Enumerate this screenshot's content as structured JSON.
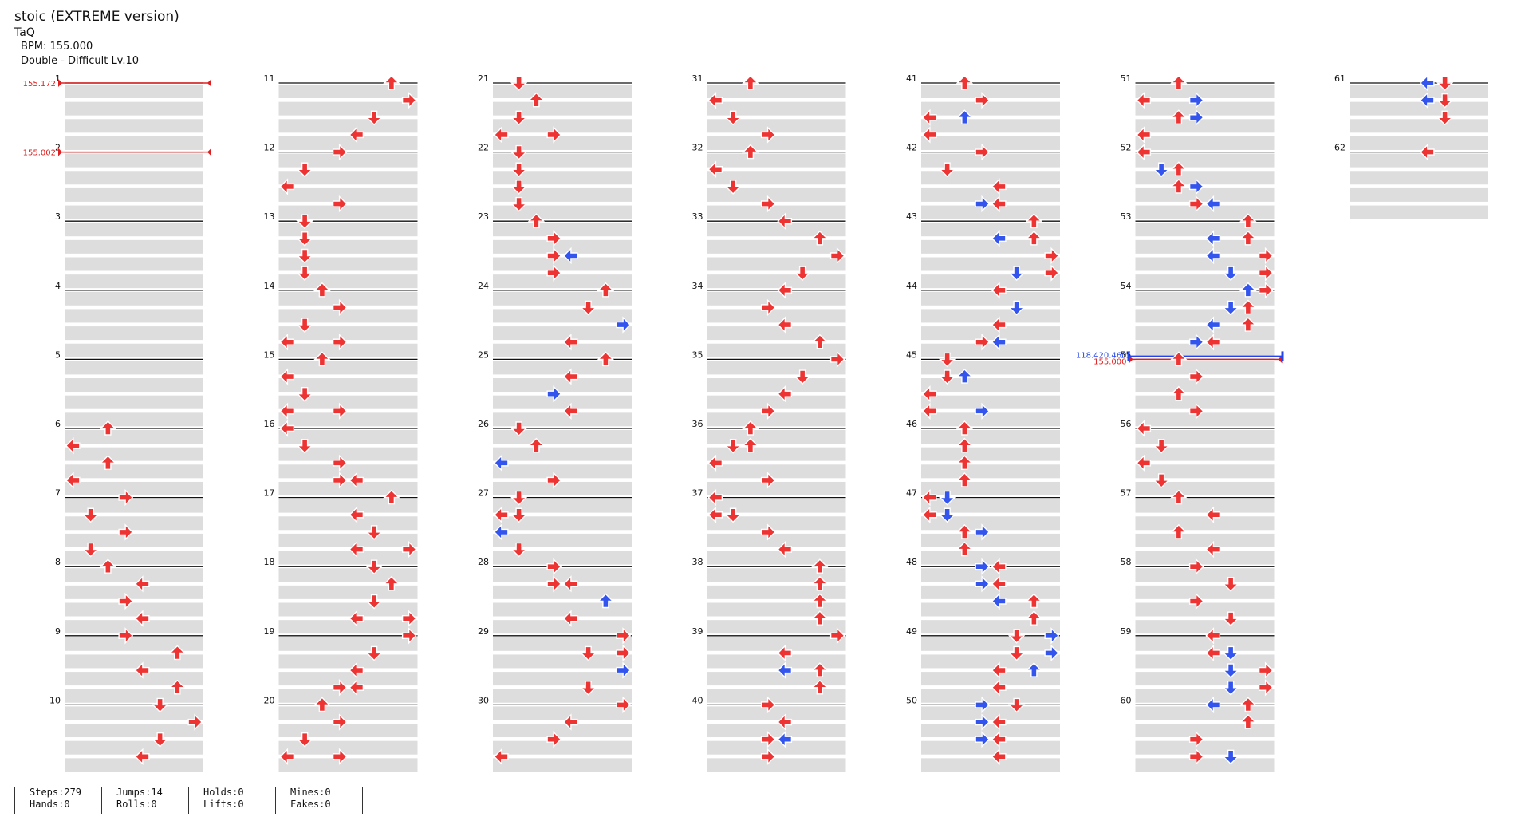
{
  "header": {
    "title": "stoic (EXTREME version)",
    "artist": "TaQ",
    "bpm": "BPM: 155.000",
    "difficulty": "Double - Difficult Lv.10"
  },
  "chart": {
    "measures_per_column": 10,
    "total_measures": 62,
    "lanes": 8,
    "lane_order": [
      "left",
      "down",
      "up",
      "right",
      "left",
      "down",
      "up",
      "right"
    ],
    "colors": {
      "quarter": "#ee3333",
      "eighth": "#3355ee",
      "bar_line": "#111111",
      "band": "#dddddd"
    },
    "bpm_changes": [
      {
        "measure": 1,
        "label": "155.172"
      },
      {
        "measure": 2,
        "label": "155.002"
      },
      {
        "measure": 55,
        "label": "155.000"
      }
    ],
    "other_changes": [
      {
        "measure": 55,
        "label": "118.420.460"
      }
    ],
    "notes": {
      "6": [
        [
          0,
          2
        ],
        [
          1,
          0
        ],
        [
          2,
          2
        ],
        [
          3,
          0
        ]
      ],
      "7": [
        [
          0,
          3
        ],
        [
          1,
          1
        ],
        [
          2,
          3
        ],
        [
          3,
          1
        ]
      ],
      "8": [
        [
          0,
          2
        ],
        [
          1,
          4
        ],
        [
          2,
          3
        ],
        [
          3,
          4
        ]
      ],
      "9": [
        [
          0,
          3
        ],
        [
          1,
          6
        ],
        [
          2,
          4
        ],
        [
          3,
          6
        ]
      ],
      "10": [
        [
          0,
          5
        ],
        [
          1,
          7
        ],
        [
          2,
          5
        ],
        [
          3,
          4
        ]
      ],
      "11": [
        [
          0,
          6
        ],
        [
          1,
          7
        ],
        [
          2,
          5
        ],
        [
          3,
          4
        ]
      ],
      "12": [
        [
          0,
          3
        ],
        [
          1,
          1
        ],
        [
          2,
          0
        ],
        [
          3,
          3
        ]
      ],
      "13": [
        [
          0,
          1
        ],
        [
          1,
          1
        ],
        [
          2,
          1
        ],
        [
          3,
          1
        ]
      ],
      "14": [
        [
          0,
          2
        ],
        [
          1,
          3
        ],
        [
          2,
          1
        ],
        [
          3,
          0,
          3
        ]
      ],
      "15": [
        [
          0,
          2
        ],
        [
          1,
          0
        ],
        [
          2,
          1
        ],
        [
          3,
          0,
          3
        ]
      ],
      "16": [
        [
          0,
          0
        ],
        [
          1,
          1
        ],
        [
          2,
          3
        ],
        [
          3,
          3,
          4
        ]
      ],
      "17": [
        [
          0,
          6
        ],
        [
          1,
          4
        ],
        [
          2,
          5
        ],
        [
          3,
          4,
          7
        ]
      ],
      "18": [
        [
          0,
          5
        ],
        [
          1,
          6
        ],
        [
          2,
          5
        ],
        [
          3,
          4,
          7
        ]
      ],
      "19": [
        [
          0,
          7
        ],
        [
          1,
          5
        ],
        [
          2,
          4
        ],
        [
          3,
          3,
          4
        ]
      ],
      "20": [
        [
          0,
          2
        ],
        [
          1,
          3
        ],
        [
          2,
          1
        ],
        [
          3,
          0,
          3
        ]
      ],
      "21": [
        [
          0,
          1
        ],
        [
          1,
          2
        ],
        [
          2,
          1
        ],
        [
          3,
          0,
          3
        ]
      ],
      "22": [
        [
          0,
          1
        ],
        [
          1,
          1
        ],
        [
          2,
          1
        ],
        [
          3,
          1
        ]
      ],
      "23": [
        [
          0,
          2
        ],
        [
          1,
          3
        ],
        [
          2,
          3,
          "b4"
        ],
        [
          3,
          3
        ]
      ],
      "24": [
        [
          0,
          6
        ],
        [
          1,
          5
        ],
        [
          2,
          "b7"
        ],
        [
          3,
          4
        ]
      ],
      "25": [
        [
          0,
          6
        ],
        [
          1,
          4
        ],
        [
          2,
          "b3"
        ],
        [
          3,
          4
        ]
      ],
      "26": [
        [
          0,
          1
        ],
        [
          1,
          2
        ],
        [
          2,
          "b0"
        ],
        [
          3,
          3
        ]
      ],
      "27": [
        [
          0,
          1
        ],
        [
          1,
          0,
          1
        ],
        [
          2,
          "b0"
        ],
        [
          3,
          1
        ]
      ],
      "28": [
        [
          0,
          3
        ],
        [
          1,
          3,
          4
        ],
        [
          2,
          "b6"
        ],
        [
          3,
          4
        ]
      ],
      "29": [
        [
          0,
          7
        ],
        [
          1,
          5,
          7
        ],
        [
          2,
          "b7"
        ],
        [
          3,
          5
        ]
      ],
      "30": [
        [
          0,
          7
        ],
        [
          1,
          4
        ],
        [
          2,
          3
        ],
        [
          3,
          0
        ]
      ],
      "31": [
        [
          0,
          2
        ],
        [
          1,
          0
        ],
        [
          2,
          1
        ],
        [
          3,
          3
        ]
      ],
      "32": [
        [
          0,
          2
        ],
        [
          1,
          0
        ],
        [
          2,
          1
        ],
        [
          3,
          3
        ]
      ],
      "33": [
        [
          0,
          4
        ],
        [
          1,
          6
        ],
        [
          2,
          7
        ],
        [
          3,
          5
        ]
      ],
      "34": [
        [
          0,
          4
        ],
        [
          1,
          3
        ],
        [
          2,
          4
        ],
        [
          3,
          6
        ]
      ],
      "35": [
        [
          0,
          7
        ],
        [
          1,
          5
        ],
        [
          2,
          4
        ],
        [
          3,
          3
        ]
      ],
      "36": [
        [
          0,
          2
        ],
        [
          1,
          1,
          2
        ],
        [
          2,
          0
        ],
        [
          3,
          3
        ]
      ],
      "37": [
        [
          0,
          0
        ],
        [
          1,
          0,
          1
        ],
        [
          2,
          3
        ],
        [
          3,
          4
        ]
      ],
      "38": [
        [
          0,
          6
        ],
        [
          1,
          6
        ],
        [
          2,
          6
        ],
        [
          3,
          6
        ]
      ],
      "39": [
        [
          0,
          7
        ],
        [
          1,
          4
        ],
        [
          2,
          "b4",
          6
        ],
        [
          3,
          6
        ]
      ],
      "40": [
        [
          0,
          3
        ],
        [
          1,
          4
        ],
        [
          2,
          3,
          "b4"
        ],
        [
          3,
          3
        ]
      ],
      "41": [
        [
          0,
          2
        ],
        [
          1,
          3
        ],
        [
          2,
          0,
          "b2"
        ],
        [
          3,
          0
        ]
      ],
      "42": [
        [
          0,
          3
        ],
        [
          1,
          1
        ],
        [
          2,
          4
        ],
        [
          3,
          "b3",
          4
        ]
      ],
      "43": [
        [
          0,
          6
        ],
        [
          1,
          "b4",
          6
        ],
        [
          2,
          7
        ],
        [
          3,
          "b5",
          7
        ]
      ],
      "44": [
        [
          0,
          4
        ],
        [
          1,
          "b5"
        ],
        [
          2,
          4
        ],
        [
          3,
          3,
          "b4"
        ]
      ],
      "45": [
        [
          0,
          1
        ],
        [
          1,
          1,
          "b2"
        ],
        [
          2,
          0
        ],
        [
          3,
          0,
          "b3"
        ]
      ],
      "46": [
        [
          0,
          2
        ],
        [
          1,
          2
        ],
        [
          2,
          2
        ],
        [
          3,
          2
        ]
      ],
      "47": [
        [
          0,
          0,
          "b1"
        ],
        [
          1,
          0,
          "b1"
        ],
        [
          2,
          2,
          "b3"
        ],
        [
          3,
          2
        ]
      ],
      "48": [
        [
          0,
          "b3",
          4
        ],
        [
          1,
          "b3",
          4
        ],
        [
          2,
          "b4",
          6
        ],
        [
          3,
          6
        ]
      ],
      "49": [
        [
          0,
          5,
          "b7"
        ],
        [
          1,
          5,
          "b7"
        ],
        [
          2,
          4,
          "b6"
        ],
        [
          3,
          4
        ]
      ],
      "50": [
        [
          0,
          "b3",
          5
        ],
        [
          1,
          "b3",
          4
        ],
        [
          2,
          "b3",
          4
        ],
        [
          3,
          4
        ]
      ],
      "51": [
        [
          0,
          2
        ],
        [
          1,
          0,
          "b3"
        ],
        [
          2,
          2,
          "b3"
        ],
        [
          3,
          0
        ]
      ],
      "52": [
        [
          0,
          0
        ],
        [
          1,
          "b1",
          2
        ],
        [
          2,
          2,
          "b3"
        ],
        [
          3,
          "b4",
          3
        ]
      ],
      "53": [
        [
          0,
          6
        ],
        [
          1,
          "b4",
          6
        ],
        [
          2,
          "b4",
          7
        ],
        [
          3,
          "b5",
          7
        ]
      ],
      "54": [
        [
          0,
          "b6",
          7
        ],
        [
          1,
          "b5",
          6
        ],
        [
          2,
          "b4",
          6
        ],
        [
          3,
          "b3",
          4
        ]
      ],
      "55": [
        [
          0,
          2
        ],
        [
          1,
          3
        ],
        [
          2,
          2
        ],
        [
          3,
          3
        ]
      ],
      "56": [
        [
          0,
          0
        ],
        [
          1,
          1
        ],
        [
          2,
          0
        ],
        [
          3,
          1
        ]
      ],
      "57": [
        [
          0,
          2
        ],
        [
          1,
          4
        ],
        [
          2,
          2
        ],
        [
          3,
          4
        ]
      ],
      "58": [
        [
          0,
          3
        ],
        [
          1,
          5
        ],
        [
          2,
          3
        ],
        [
          3,
          5
        ]
      ],
      "59": [
        [
          0,
          4
        ],
        [
          1,
          4,
          "b5"
        ],
        [
          2,
          "b5",
          7
        ],
        [
          3,
          "b5",
          7
        ]
      ],
      "60": [
        [
          0,
          "b4",
          6
        ],
        [
          1,
          6
        ],
        [
          2,
          3
        ],
        [
          3,
          3,
          "b5"
        ]
      ],
      "61": [
        [
          0,
          "b4",
          5
        ],
        [
          1,
          "b4",
          5
        ],
        [
          2,
          5
        ]
      ],
      "62": [
        [
          0,
          "b4",
          4
        ]
      ]
    }
  },
  "stats": {
    "steps": "Steps:279",
    "jumps": "Jumps:14",
    "holds": "Holds:0",
    "mines": "Mines:0",
    "hands": "Hands:0",
    "rolls": "Rolls:0",
    "lifts": "Lifts:0",
    "fakes": "Fakes:0"
  }
}
